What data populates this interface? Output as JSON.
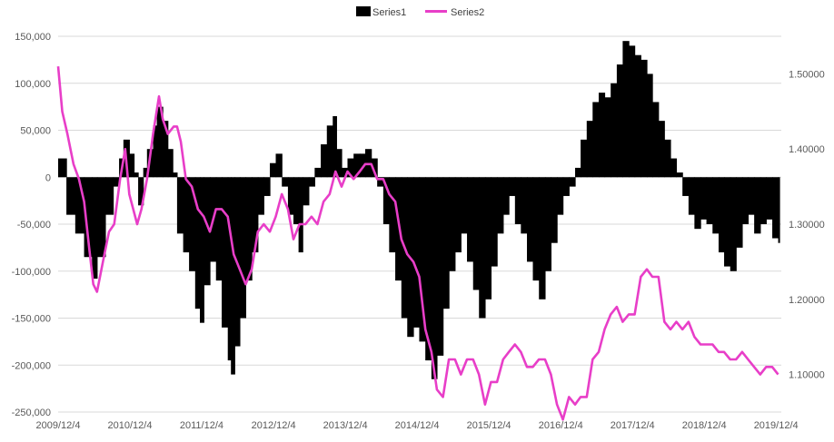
{
  "chart_data": {
    "type": "bar",
    "combo": "bar + line (secondary axis)",
    "legend_position": "top-center",
    "grid": true,
    "legend": [
      {
        "name": "Series1",
        "color": "#000000",
        "kind": "bar"
      },
      {
        "name": "Series2",
        "color": "#e83ec8",
        "kind": "line"
      }
    ],
    "x_range": [
      "2009-12-04",
      "2019-12-31"
    ],
    "x_ticks": [
      "2009/12/4",
      "2010/12/4",
      "2011/12/4",
      "2012/12/4",
      "2013/12/4",
      "2014/12/4",
      "2015/12/4",
      "2016/12/4",
      "2017/12/4",
      "2018/12/4",
      "2019/12/4"
    ],
    "y_left": {
      "range": [
        -250000,
        150000
      ],
      "ticks": [
        150000,
        100000,
        50000,
        0,
        -50000,
        -100000,
        -150000,
        -200000,
        -250000
      ],
      "tick_labels": [
        "150,000",
        "100,000",
        "50,000",
        "0",
        "-50,000",
        "-100,000",
        "-150,000",
        "-200,000",
        "-250,000"
      ]
    },
    "y_right": {
      "range": [
        1.05,
        1.55
      ],
      "ticks": [
        1.5,
        1.4,
        1.3,
        1.2,
        1.1
      ],
      "tick_labels": [
        "1.50000",
        "1.40000",
        "1.30000",
        "1.20000",
        "1.10000"
      ]
    },
    "series": [
      {
        "name": "Series1",
        "axis": "left",
        "kind": "bar",
        "points": [
          [
            "2009-12-04",
            20000
          ],
          [
            "2010-01-15",
            -40000
          ],
          [
            "2010-03-01",
            -60000
          ],
          [
            "2010-04-15",
            -85000
          ],
          [
            "2010-05-25",
            -108000
          ],
          [
            "2010-06-20",
            -85000
          ],
          [
            "2010-08-01",
            -40000
          ],
          [
            "2010-09-10",
            -10000
          ],
          [
            "2010-10-10",
            20000
          ],
          [
            "2010-11-01",
            40000
          ],
          [
            "2010-12-01",
            25000
          ],
          [
            "2010-12-25",
            5000
          ],
          [
            "2011-01-15",
            -30000
          ],
          [
            "2011-02-10",
            10000
          ],
          [
            "2011-03-01",
            30000
          ],
          [
            "2011-04-01",
            55000
          ],
          [
            "2011-04-20",
            75000
          ],
          [
            "2011-05-20",
            60000
          ],
          [
            "2011-06-15",
            30000
          ],
          [
            "2011-07-10",
            5000
          ],
          [
            "2011-08-01",
            -60000
          ],
          [
            "2011-09-01",
            -80000
          ],
          [
            "2011-10-01",
            -100000
          ],
          [
            "2011-11-01",
            -140000
          ],
          [
            "2011-11-25",
            -155000
          ],
          [
            "2011-12-15",
            -115000
          ],
          [
            "2012-01-15",
            -90000
          ],
          [
            "2012-02-15",
            -110000
          ],
          [
            "2012-03-15",
            -160000
          ],
          [
            "2012-04-15",
            -195000
          ],
          [
            "2012-05-01",
            -210000
          ],
          [
            "2012-05-20",
            -180000
          ],
          [
            "2012-06-15",
            -150000
          ],
          [
            "2012-07-15",
            -110000
          ],
          [
            "2012-08-15",
            -80000
          ],
          [
            "2012-09-15",
            -40000
          ],
          [
            "2012-10-15",
            -20000
          ],
          [
            "2012-11-15",
            15000
          ],
          [
            "2012-12-15",
            25000
          ],
          [
            "2013-01-15",
            -10000
          ],
          [
            "2013-02-15",
            -40000
          ],
          [
            "2013-03-15",
            -50000
          ],
          [
            "2013-04-10",
            -80000
          ],
          [
            "2013-05-01",
            -30000
          ],
          [
            "2013-06-01",
            -10000
          ],
          [
            "2013-07-01",
            10000
          ],
          [
            "2013-08-01",
            35000
          ],
          [
            "2013-09-01",
            55000
          ],
          [
            "2013-10-01",
            65000
          ],
          [
            "2013-10-20",
            30000
          ],
          [
            "2013-11-15",
            10000
          ],
          [
            "2013-12-15",
            20000
          ],
          [
            "2014-01-15",
            25000
          ],
          [
            "2014-02-15",
            25000
          ],
          [
            "2014-03-15",
            30000
          ],
          [
            "2014-04-15",
            20000
          ],
          [
            "2014-05-15",
            -10000
          ],
          [
            "2014-06-15",
            -50000
          ],
          [
            "2014-07-15",
            -80000
          ],
          [
            "2014-08-15",
            -110000
          ],
          [
            "2014-09-15",
            -150000
          ],
          [
            "2014-10-15",
            -170000
          ],
          [
            "2014-11-15",
            -160000
          ],
          [
            "2014-12-15",
            -175000
          ],
          [
            "2015-01-15",
            -195000
          ],
          [
            "2015-02-15",
            -215000
          ],
          [
            "2015-03-15",
            -190000
          ],
          [
            "2015-04-15",
            -140000
          ],
          [
            "2015-05-15",
            -100000
          ],
          [
            "2015-06-15",
            -80000
          ],
          [
            "2015-07-15",
            -60000
          ],
          [
            "2015-08-15",
            -90000
          ],
          [
            "2015-09-15",
            -120000
          ],
          [
            "2015-10-15",
            -150000
          ],
          [
            "2015-11-15",
            -130000
          ],
          [
            "2015-12-15",
            -95000
          ],
          [
            "2016-01-15",
            -60000
          ],
          [
            "2016-02-15",
            -40000
          ],
          [
            "2016-03-15",
            -20000
          ],
          [
            "2016-04-15",
            -50000
          ],
          [
            "2016-05-15",
            -60000
          ],
          [
            "2016-06-15",
            -90000
          ],
          [
            "2016-07-15",
            -110000
          ],
          [
            "2016-08-15",
            -130000
          ],
          [
            "2016-09-15",
            -100000
          ],
          [
            "2016-10-15",
            -70000
          ],
          [
            "2016-11-15",
            -40000
          ],
          [
            "2016-12-15",
            -20000
          ],
          [
            "2017-01-15",
            -10000
          ],
          [
            "2017-02-15",
            10000
          ],
          [
            "2017-03-15",
            40000
          ],
          [
            "2017-04-15",
            60000
          ],
          [
            "2017-05-15",
            80000
          ],
          [
            "2017-06-15",
            90000
          ],
          [
            "2017-07-15",
            85000
          ],
          [
            "2017-08-15",
            100000
          ],
          [
            "2017-09-15",
            120000
          ],
          [
            "2017-10-15",
            145000
          ],
          [
            "2017-11-15",
            140000
          ],
          [
            "2017-12-15",
            130000
          ],
          [
            "2018-01-15",
            125000
          ],
          [
            "2018-02-15",
            110000
          ],
          [
            "2018-03-15",
            80000
          ],
          [
            "2018-04-15",
            60000
          ],
          [
            "2018-05-15",
            40000
          ],
          [
            "2018-06-15",
            20000
          ],
          [
            "2018-07-15",
            5000
          ],
          [
            "2018-08-15",
            -20000
          ],
          [
            "2018-09-15",
            -40000
          ],
          [
            "2018-10-15",
            -55000
          ],
          [
            "2018-11-15",
            -45000
          ],
          [
            "2018-12-15",
            -50000
          ],
          [
            "2019-01-15",
            -60000
          ],
          [
            "2019-02-15",
            -80000
          ],
          [
            "2019-03-15",
            -95000
          ],
          [
            "2019-04-15",
            -100000
          ],
          [
            "2019-05-15",
            -75000
          ],
          [
            "2019-06-15",
            -50000
          ],
          [
            "2019-07-15",
            -40000
          ],
          [
            "2019-08-15",
            -60000
          ],
          [
            "2019-09-15",
            -50000
          ],
          [
            "2019-10-15",
            -45000
          ],
          [
            "2019-11-15",
            -65000
          ],
          [
            "2019-12-15",
            -70000
          ]
        ]
      },
      {
        "name": "Series2",
        "axis": "right",
        "kind": "line",
        "points": [
          [
            "2009-12-04",
            1.51
          ],
          [
            "2009-12-25",
            1.45
          ],
          [
            "2010-01-20",
            1.42
          ],
          [
            "2010-02-20",
            1.38
          ],
          [
            "2010-03-20",
            1.36
          ],
          [
            "2010-04-15",
            1.33
          ],
          [
            "2010-05-10",
            1.27
          ],
          [
            "2010-06-01",
            1.22
          ],
          [
            "2010-06-20",
            1.21
          ],
          [
            "2010-07-20",
            1.25
          ],
          [
            "2010-08-20",
            1.29
          ],
          [
            "2010-09-15",
            1.3
          ],
          [
            "2010-10-15",
            1.36
          ],
          [
            "2010-11-10",
            1.4
          ],
          [
            "2010-12-01",
            1.34
          ],
          [
            "2011-01-10",
            1.3
          ],
          [
            "2011-02-01",
            1.32
          ],
          [
            "2011-03-01",
            1.36
          ],
          [
            "2011-04-01",
            1.42
          ],
          [
            "2011-05-01",
            1.47
          ],
          [
            "2011-05-20",
            1.44
          ],
          [
            "2011-06-15",
            1.42
          ],
          [
            "2011-07-15",
            1.43
          ],
          [
            "2011-08-01",
            1.43
          ],
          [
            "2011-08-20",
            1.41
          ],
          [
            "2011-09-15",
            1.36
          ],
          [
            "2011-10-15",
            1.35
          ],
          [
            "2011-11-15",
            1.32
          ],
          [
            "2011-12-15",
            1.31
          ],
          [
            "2012-01-15",
            1.29
          ],
          [
            "2012-02-15",
            1.32
          ],
          [
            "2012-03-15",
            1.32
          ],
          [
            "2012-04-15",
            1.31
          ],
          [
            "2012-05-15",
            1.26
          ],
          [
            "2012-06-15",
            1.24
          ],
          [
            "2012-07-15",
            1.22
          ],
          [
            "2012-08-15",
            1.24
          ],
          [
            "2012-09-15",
            1.29
          ],
          [
            "2012-10-15",
            1.3
          ],
          [
            "2012-11-15",
            1.29
          ],
          [
            "2012-12-15",
            1.31
          ],
          [
            "2013-01-15",
            1.34
          ],
          [
            "2013-02-15",
            1.32
          ],
          [
            "2013-03-15",
            1.28
          ],
          [
            "2013-04-15",
            1.3
          ],
          [
            "2013-05-15",
            1.3
          ],
          [
            "2013-06-15",
            1.31
          ],
          [
            "2013-07-15",
            1.3
          ],
          [
            "2013-08-15",
            1.33
          ],
          [
            "2013-09-15",
            1.34
          ],
          [
            "2013-10-15",
            1.37
          ],
          [
            "2013-11-15",
            1.35
          ],
          [
            "2013-12-15",
            1.37
          ],
          [
            "2014-01-15",
            1.36
          ],
          [
            "2014-02-15",
            1.37
          ],
          [
            "2014-03-15",
            1.38
          ],
          [
            "2014-04-15",
            1.38
          ],
          [
            "2014-05-15",
            1.36
          ],
          [
            "2014-06-15",
            1.36
          ],
          [
            "2014-07-15",
            1.34
          ],
          [
            "2014-08-15",
            1.33
          ],
          [
            "2014-09-15",
            1.28
          ],
          [
            "2014-10-15",
            1.26
          ],
          [
            "2014-11-15",
            1.25
          ],
          [
            "2014-12-15",
            1.23
          ],
          [
            "2015-01-15",
            1.16
          ],
          [
            "2015-02-15",
            1.13
          ],
          [
            "2015-03-15",
            1.08
          ],
          [
            "2015-04-15",
            1.07
          ],
          [
            "2015-05-15",
            1.12
          ],
          [
            "2015-06-15",
            1.12
          ],
          [
            "2015-07-15",
            1.1
          ],
          [
            "2015-08-15",
            1.12
          ],
          [
            "2015-09-15",
            1.12
          ],
          [
            "2015-10-15",
            1.1
          ],
          [
            "2015-11-15",
            1.06
          ],
          [
            "2015-12-15",
            1.09
          ],
          [
            "2016-01-15",
            1.09
          ],
          [
            "2016-02-15",
            1.12
          ],
          [
            "2016-03-15",
            1.13
          ],
          [
            "2016-04-15",
            1.14
          ],
          [
            "2016-05-15",
            1.13
          ],
          [
            "2016-06-15",
            1.11
          ],
          [
            "2016-07-15",
            1.11
          ],
          [
            "2016-08-15",
            1.12
          ],
          [
            "2016-09-15",
            1.12
          ],
          [
            "2016-10-15",
            1.1
          ],
          [
            "2016-11-15",
            1.06
          ],
          [
            "2016-12-15",
            1.04
          ],
          [
            "2017-01-15",
            1.07
          ],
          [
            "2017-02-15",
            1.06
          ],
          [
            "2017-03-15",
            1.07
          ],
          [
            "2017-04-15",
            1.07
          ],
          [
            "2017-05-15",
            1.12
          ],
          [
            "2017-06-15",
            1.13
          ],
          [
            "2017-07-15",
            1.16
          ],
          [
            "2017-08-15",
            1.18
          ],
          [
            "2017-09-15",
            1.19
          ],
          [
            "2017-10-15",
            1.17
          ],
          [
            "2017-11-15",
            1.18
          ],
          [
            "2017-12-15",
            1.18
          ],
          [
            "2018-01-15",
            1.23
          ],
          [
            "2018-02-15",
            1.24
          ],
          [
            "2018-03-15",
            1.23
          ],
          [
            "2018-04-15",
            1.23
          ],
          [
            "2018-05-15",
            1.17
          ],
          [
            "2018-06-15",
            1.16
          ],
          [
            "2018-07-15",
            1.17
          ],
          [
            "2018-08-15",
            1.16
          ],
          [
            "2018-09-15",
            1.17
          ],
          [
            "2018-10-15",
            1.15
          ],
          [
            "2018-11-15",
            1.14
          ],
          [
            "2018-12-15",
            1.14
          ],
          [
            "2019-01-15",
            1.14
          ],
          [
            "2019-02-15",
            1.13
          ],
          [
            "2019-03-15",
            1.13
          ],
          [
            "2019-04-15",
            1.12
          ],
          [
            "2019-05-15",
            1.12
          ],
          [
            "2019-06-15",
            1.13
          ],
          [
            "2019-07-15",
            1.12
          ],
          [
            "2019-08-15",
            1.11
          ],
          [
            "2019-09-15",
            1.1
          ],
          [
            "2019-10-15",
            1.11
          ],
          [
            "2019-11-15",
            1.11
          ],
          [
            "2019-12-15",
            1.1
          ]
        ]
      }
    ]
  }
}
